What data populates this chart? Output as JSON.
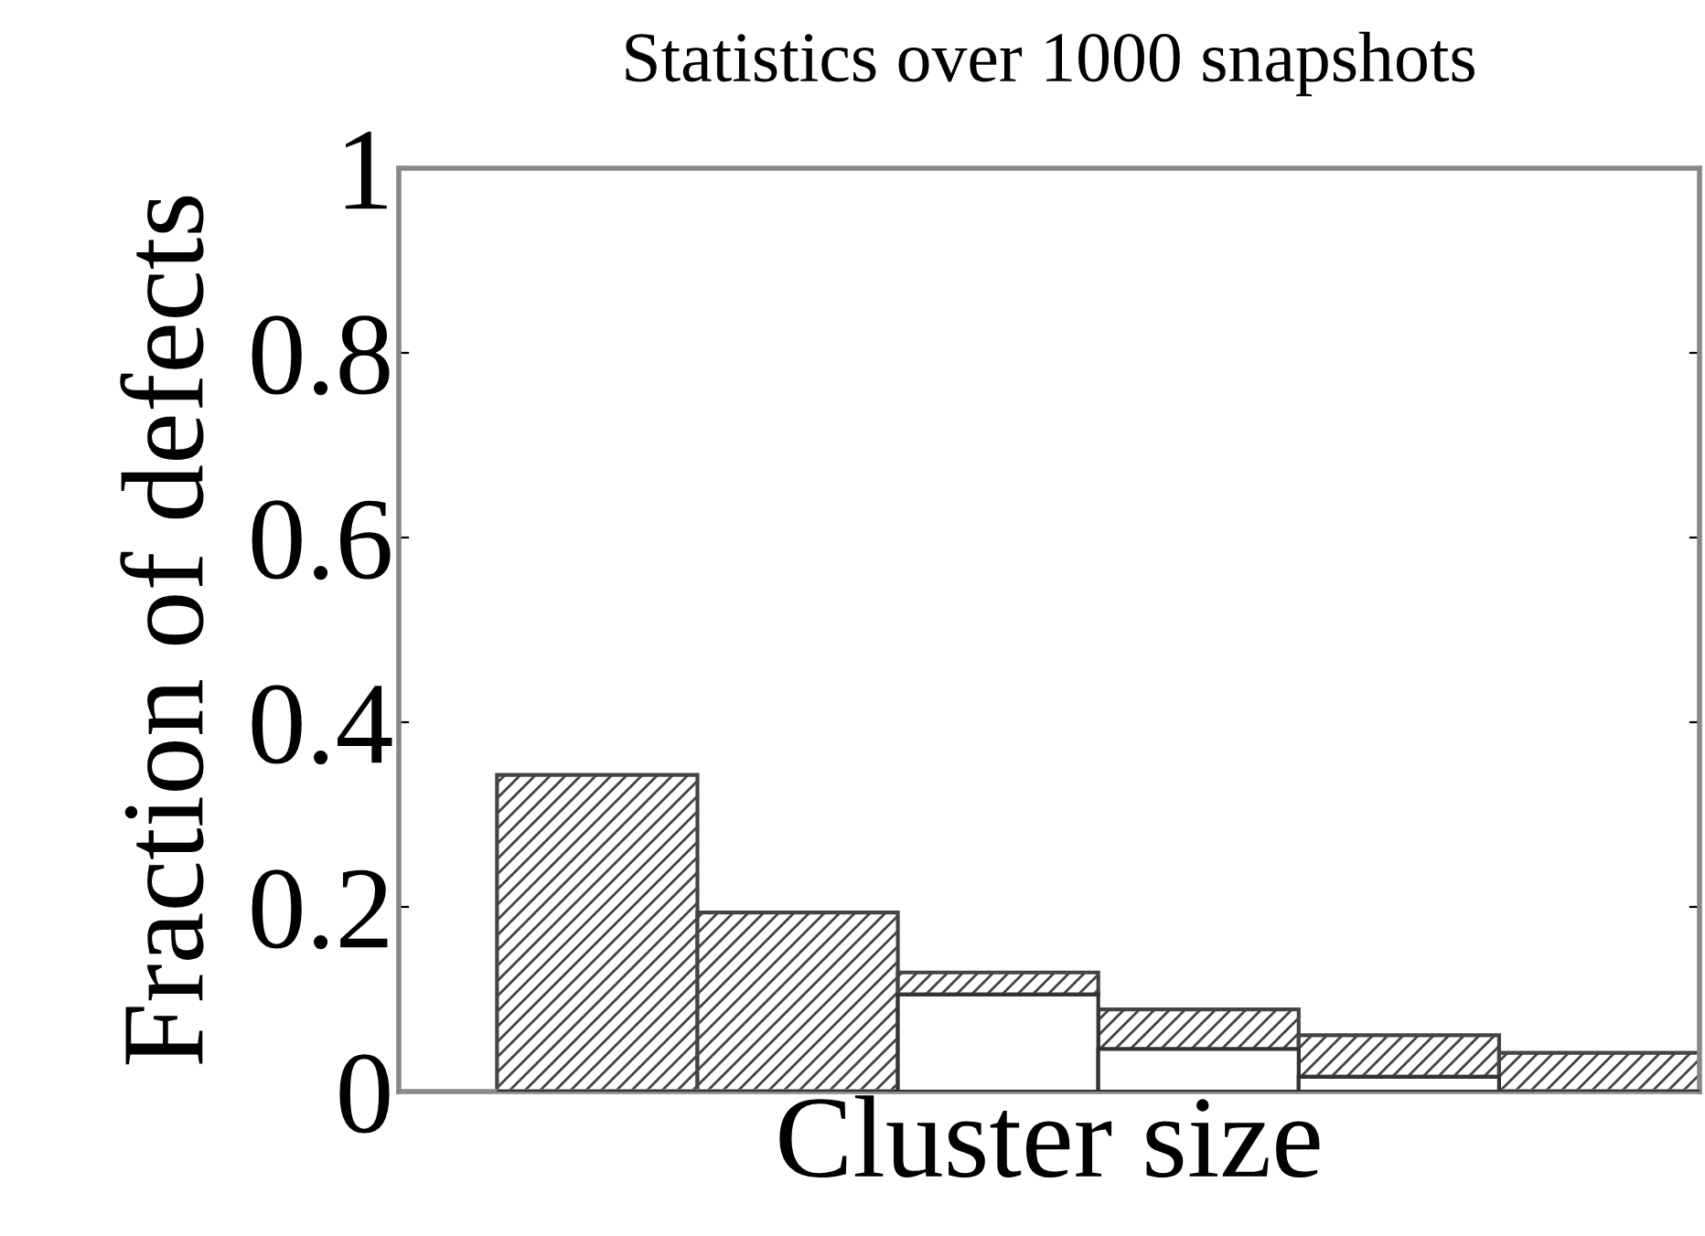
{
  "chart_data": {
    "type": "bar",
    "title": "Statistics over 1000 snapshots",
    "xlabel": "Cluster size",
    "ylabel": "Fraction of defects",
    "categories": [
      null,
      null,
      null,
      null,
      null,
      null
    ],
    "stacked": true,
    "series": [
      {
        "color": "#ffffff",
        "values": [
          0,
          0,
          0.105,
          0.046,
          0.016,
          0
        ]
      },
      {
        "color": "#444444",
        "values": [
          0.343,
          0.194,
          0.024,
          0.043,
          0.045,
          0.042
        ]
      }
    ],
    "ylim": [
      0,
      1
    ],
    "yticks": [
      0,
      0.2,
      0.4,
      0.6,
      0.8,
      1
    ],
    "grid": false,
    "legend": false
  }
}
